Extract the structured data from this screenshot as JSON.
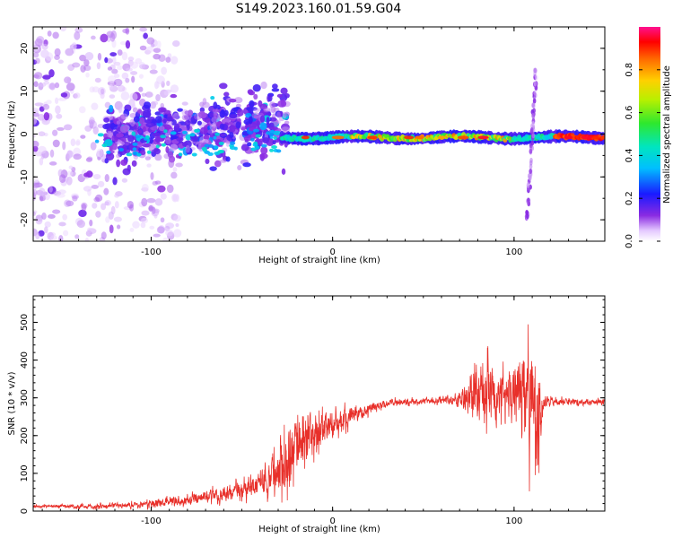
{
  "figure_title": "S149.2023.160.01.59.G04",
  "chart_data": [
    {
      "type": "heatmap",
      "xlabel": "Height of straight line (km)",
      "ylabel": "Frequency (Hz)",
      "xlim": [
        -165,
        150
      ],
      "ylim": [
        -25,
        25
      ],
      "x_ticks": [
        -100,
        0,
        100
      ],
      "x_tick_labels": [
        "-100",
        "0",
        "100"
      ],
      "y_ticks": [
        -20,
        -10,
        0,
        10,
        20
      ],
      "y_tick_labels": [
        "-20",
        "-10",
        "0",
        "10",
        "20"
      ],
      "colorbar": {
        "label": "Normalized spectral amplitude",
        "ticks": [
          0.0,
          0.2,
          0.4,
          0.6,
          0.8
        ],
        "tick_labels": [
          "0.0",
          "0.2",
          "0.4",
          "0.6",
          "0.8"
        ],
        "range": [
          0,
          1
        ]
      },
      "features": [
        {
          "x_range": [
            -165,
            -90
          ],
          "freq_range": [
            -25,
            25
          ],
          "amplitude": 0.15,
          "description": "scattered noise"
        },
        {
          "x_range": [
            -120,
            -30
          ],
          "freq_range": [
            -6,
            12
          ],
          "amplitude": 0.25,
          "description": "broad noisy band"
        },
        {
          "x_range": [
            -25,
            150
          ],
          "freq_center": -1,
          "amplitude": 0.9,
          "description": "main line"
        },
        {
          "x": 110,
          "freq_range": [
            -20,
            15
          ],
          "amplitude": 0.2,
          "description": "vertical spike"
        }
      ],
      "grid": false
    },
    {
      "type": "line",
      "xlabel": "Height of straight line (km)",
      "ylabel": "SNR (10 * v/v)",
      "xlim": [
        -165,
        150
      ],
      "ylim": [
        0,
        570
      ],
      "x_ticks": [
        -100,
        0,
        100
      ],
      "x_tick_labels": [
        "-100",
        "0",
        "100"
      ],
      "y_ticks": [
        0,
        100,
        200,
        300,
        400,
        500
      ],
      "y_tick_labels": [
        "0",
        "100",
        "200",
        "300",
        "400",
        "500"
      ],
      "series": [
        {
          "color": "#e8302a",
          "envelope": {
            "x": [
              -165,
              -130,
              -100,
              -80,
              -60,
              -45,
              -35,
              -25,
              -15,
              -5,
              5,
              15,
              25,
              35,
              50,
              60,
              70,
              78,
              85,
              95,
              100,
              105,
              108,
              112,
              116,
              120,
              130,
              140,
              150
            ],
            "mid": [
              13,
              12,
              20,
              30,
              45,
              60,
              90,
              150,
              190,
              215,
              240,
              260,
              280,
              290,
              290,
              295,
              298,
              300,
              305,
              300,
              305,
              310,
              300,
              250,
              285,
              292,
              290,
              288,
              290
            ],
            "amp": [
              5,
              8,
              12,
              18,
              25,
              35,
              60,
              130,
              90,
              60,
              40,
              25,
              15,
              12,
              10,
              12,
              30,
              90,
              120,
              80,
              100,
              150,
              200,
              250,
              40,
              15,
              12,
              12,
              10
            ]
          }
        }
      ],
      "grid": false
    }
  ]
}
